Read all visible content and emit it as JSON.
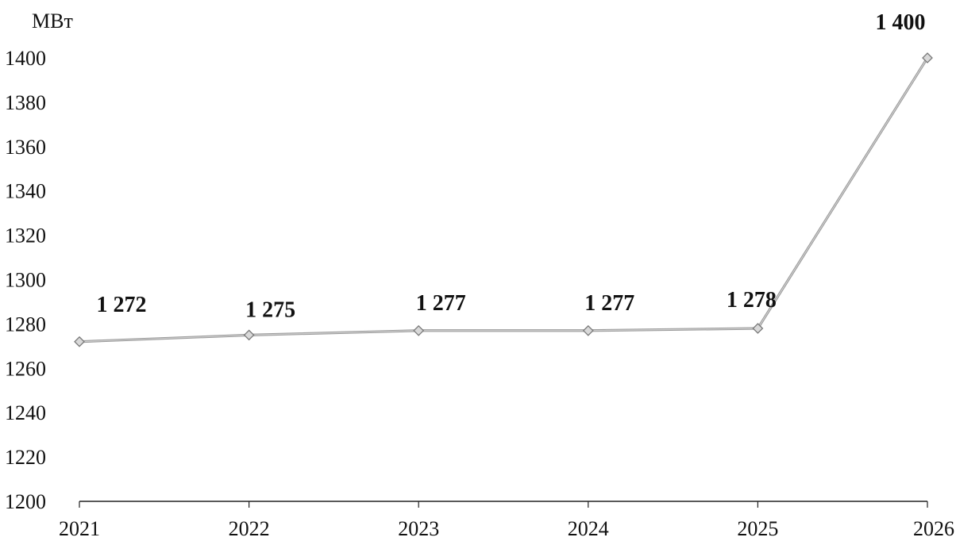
{
  "chart_data": {
    "type": "line",
    "title": "",
    "xlabel": "",
    "ylabel": "МВт",
    "categories": [
      "2021",
      "2022",
      "2023",
      "2024",
      "2025",
      "2026"
    ],
    "series": [
      {
        "values": [
          1272,
          1275,
          1277,
          1277,
          1278,
          1400
        ],
        "labels": [
          "1 272",
          "1 275",
          "1 277",
          "1 277",
          "1 278",
          "1 400"
        ]
      }
    ],
    "yticks": [
      "1200",
      "1220",
      "1240",
      "1260",
      "1280",
      "1300",
      "1320",
      "1340",
      "1360",
      "1380",
      "1400"
    ],
    "ylim": [
      1200,
      1400
    ],
    "grid": false,
    "legend": "none",
    "colors": {
      "line": "#9a9a9a",
      "marker": "#d9d9d9",
      "axis": "#222222",
      "text": "#111111"
    }
  }
}
